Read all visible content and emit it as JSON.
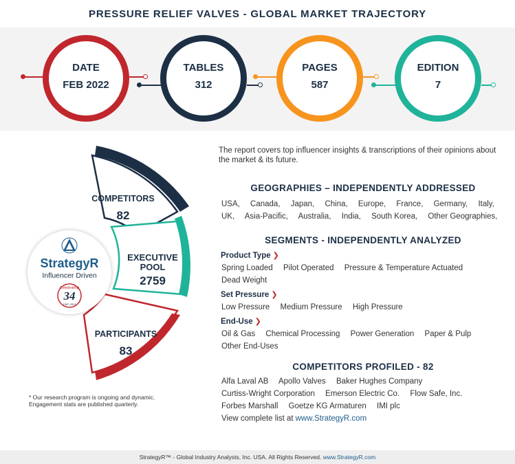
{
  "title": "PRESSURE RELIEF VALVES - GLOBAL MARKET TRAJECTORY",
  "colors": {
    "red": "#c0272d",
    "navy": "#1c2f45",
    "orange": "#f7941d",
    "teal": "#1fb39a"
  },
  "stats": [
    {
      "label": "DATE",
      "value": "FEB 2022"
    },
    {
      "label": "TABLES",
      "value": "312"
    },
    {
      "label": "PAGES",
      "value": "587"
    },
    {
      "label": "EDITION",
      "value": "7"
    }
  ],
  "segments": {
    "competitors": {
      "label": "COMPETITORS",
      "value": "82"
    },
    "executive": {
      "label1": "EXECUTIVE",
      "label2": "POOL",
      "value": "2759"
    },
    "participants": {
      "label": "PARTICIPANTS",
      "value": "83"
    }
  },
  "logo": {
    "name": "StrategyR",
    "tagline": "Influencer Driven",
    "badge_text": "Celebrating",
    "badge_number": "34",
    "badge_years": "1987-2021"
  },
  "footnote": "* Our research program is ongoing and dynamic. Engagement stats are published quarterly.",
  "intro": "The report covers top influencer insights & transcriptions of their opinions about the market & its future.",
  "geographies": {
    "heading": "GEOGRAPHIES – INDEPENDENTLY ADDRESSED",
    "row1": [
      "USA,",
      "Canada,",
      "Japan,",
      "China,",
      "Europe,",
      "France,",
      "Germany,",
      "Italy,"
    ],
    "row2": [
      "UK,",
      "Asia-Pacific,",
      "Australia,",
      "India,",
      "South Korea,",
      "Other Geographies,"
    ]
  },
  "segments_section": {
    "heading": "SEGMENTS - INDEPENDENTLY ANALYZED",
    "product_type": {
      "label": "Product Type",
      "row1": [
        "Spring Loaded",
        "Pilot Operated",
        "Pressure & Temperature Actuated"
      ],
      "row2": [
        "Dead Weight"
      ]
    },
    "set_pressure": {
      "label": "Set Pressure",
      "row1": [
        "Low Pressure",
        "Medium Pressure",
        "High Pressure"
      ]
    },
    "end_use": {
      "label": "End-Use",
      "row1": [
        "Oil & Gas",
        "Chemical Processing",
        "Power Generation",
        "Paper & Pulp"
      ],
      "row2": [
        "Other End-Uses"
      ]
    }
  },
  "competitors_profiled": {
    "heading": "COMPETITORS PROFILED - 82",
    "row1": [
      "Alfa Laval AB",
      "Apollo Valves",
      "Baker Hughes Company"
    ],
    "row2": [
      "Curtiss-Wright Corporation",
      "Emerson Electric Co.",
      "Flow Safe, Inc."
    ],
    "row3": [
      "Forbes Marshall",
      "Goetze KG Armaturen",
      "IMI plc"
    ],
    "view_text": "View complete list at",
    "view_link": "www.StrategyR.com"
  },
  "footer": {
    "text": "StrategyR™ - Global Industry Analysts, Inc. USA. All Rights Reserved.",
    "link": "www.StrategyR.com"
  }
}
